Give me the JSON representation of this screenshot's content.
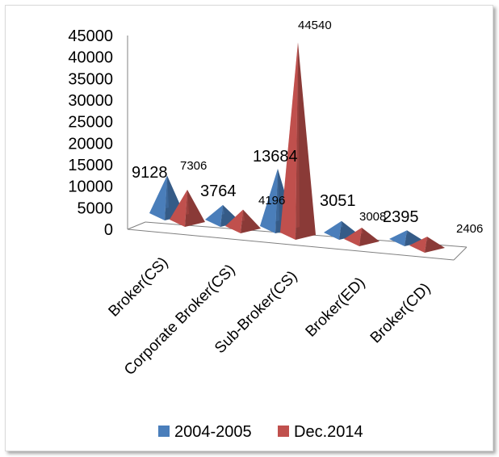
{
  "chart_data": {
    "type": "bar",
    "subtype": "3d-pyramid",
    "categories": [
      "Broker(CS)",
      "Corporate Broker(CS)",
      "Sub-Broker(CS)",
      "Broker(ED)",
      "Broker(CD)"
    ],
    "series": [
      {
        "name": "2004-2005",
        "values": [
          9128,
          3764,
          13684,
          3051,
          2395
        ],
        "color": "#4a7ebb"
      },
      {
        "name": "Dec.2014",
        "values": [
          7306,
          4196,
          44540,
          3008,
          2406
        ],
        "color": "#c0504d"
      }
    ],
    "y_ticks": [
      "45000",
      "40000",
      "35000",
      "30000",
      "25000",
      "20000",
      "15000",
      "10000",
      "5000",
      "0"
    ],
    "ylim": [
      0,
      45000
    ],
    "legend_position": "bottom",
    "grid": false
  }
}
